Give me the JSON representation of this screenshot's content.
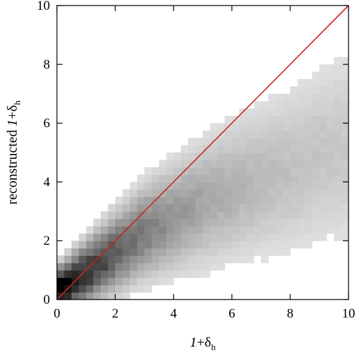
{
  "chart_data": {
    "type": "heatmap",
    "xlabel": {
      "italic": "1",
      "rest": "+δ",
      "sub": "h"
    },
    "ylabel": {
      "prefix": "reconstructed ",
      "italic": "1",
      "rest": "+δ",
      "sub": "h"
    },
    "xlim": [
      0,
      10
    ],
    "ylim": [
      0,
      10
    ],
    "xticks": [
      0,
      2,
      4,
      6,
      8,
      10
    ],
    "yticks": [
      0,
      2,
      4,
      6,
      8,
      10
    ],
    "tick_labels_x": [
      "0",
      "2",
      "4",
      "6",
      "8",
      "10"
    ],
    "tick_labels_y": [
      "0",
      "2",
      "4",
      "6",
      "8",
      "10"
    ],
    "colormap": "grayscale (white = low density, black = high density)",
    "bin_size": 0.25,
    "density_ridge": [
      [
        0.0,
        0.3
      ],
      [
        1.0,
        0.9
      ],
      [
        2.0,
        1.6
      ],
      [
        3.0,
        2.3
      ],
      [
        4.0,
        2.8
      ],
      [
        5.0,
        3.3
      ],
      [
        6.0,
        3.7
      ],
      [
        7.0,
        4.1
      ],
      [
        8.0,
        4.4
      ],
      [
        9.0,
        4.9
      ],
      [
        10.0,
        5.2
      ]
    ],
    "reference_line": {
      "x": [
        0,
        10
      ],
      "y": [
        0,
        10
      ],
      "color": "#cc2222"
    },
    "grid": false,
    "legend": "none"
  }
}
